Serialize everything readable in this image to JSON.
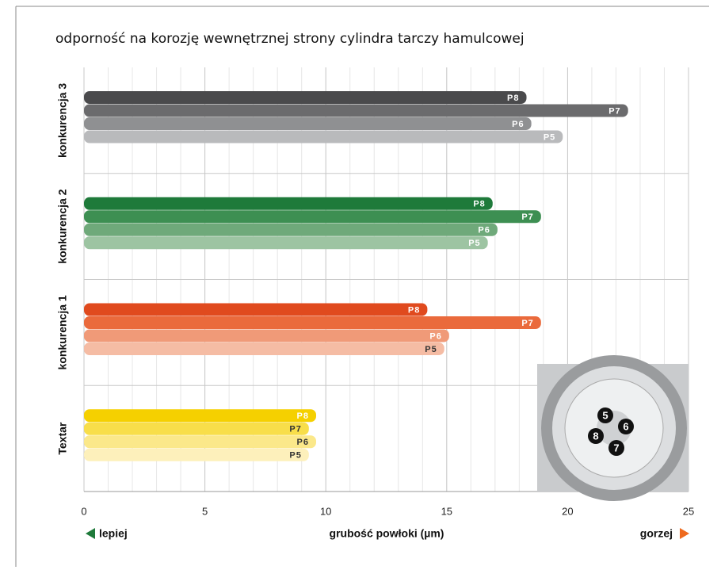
{
  "chart_data": {
    "type": "bar",
    "orientation": "horizontal",
    "title": "odporność na korozję wewnętrznej strony cylindra tarczy hamulcowej",
    "x_label": "grubość powłoki (µm)",
    "left_note": "lepiej",
    "right_note": "gorzej",
    "categories": [
      "konkurencja 3",
      "konkurencja 2",
      "konkurencja 1",
      "Textar"
    ],
    "series": [
      {
        "name": "P8",
        "values": [
          18.3,
          16.9,
          14.2,
          9.6
        ],
        "colors": [
          "#4a4a4c",
          "#1e7a3a",
          "#e04a1e",
          "#f5d000"
        ]
      },
      {
        "name": "P7",
        "values": [
          22.5,
          18.9,
          18.9,
          9.3
        ],
        "colors": [
          "#6b6b6d",
          "#3d8f52",
          "#ea6a3c",
          "#f8de4a"
        ]
      },
      {
        "name": "P6",
        "values": [
          18.5,
          17.1,
          15.1,
          9.6
        ],
        "colors": [
          "#8f9092",
          "#6fa97a",
          "#f09a78",
          "#fbe88a"
        ]
      },
      {
        "name": "P5",
        "values": [
          19.8,
          16.7,
          14.9,
          9.3
        ],
        "colors": [
          "#b9babc",
          "#9dc4a2",
          "#f5bca4",
          "#fdf0bb"
        ]
      }
    ],
    "xlim": [
      0,
      25
    ],
    "xticks": [
      0,
      5,
      10,
      15,
      20,
      25
    ],
    "minor_grid_step": 1,
    "grid": true,
    "photo_labels": [
      "5",
      "6",
      "8",
      "7"
    ]
  }
}
